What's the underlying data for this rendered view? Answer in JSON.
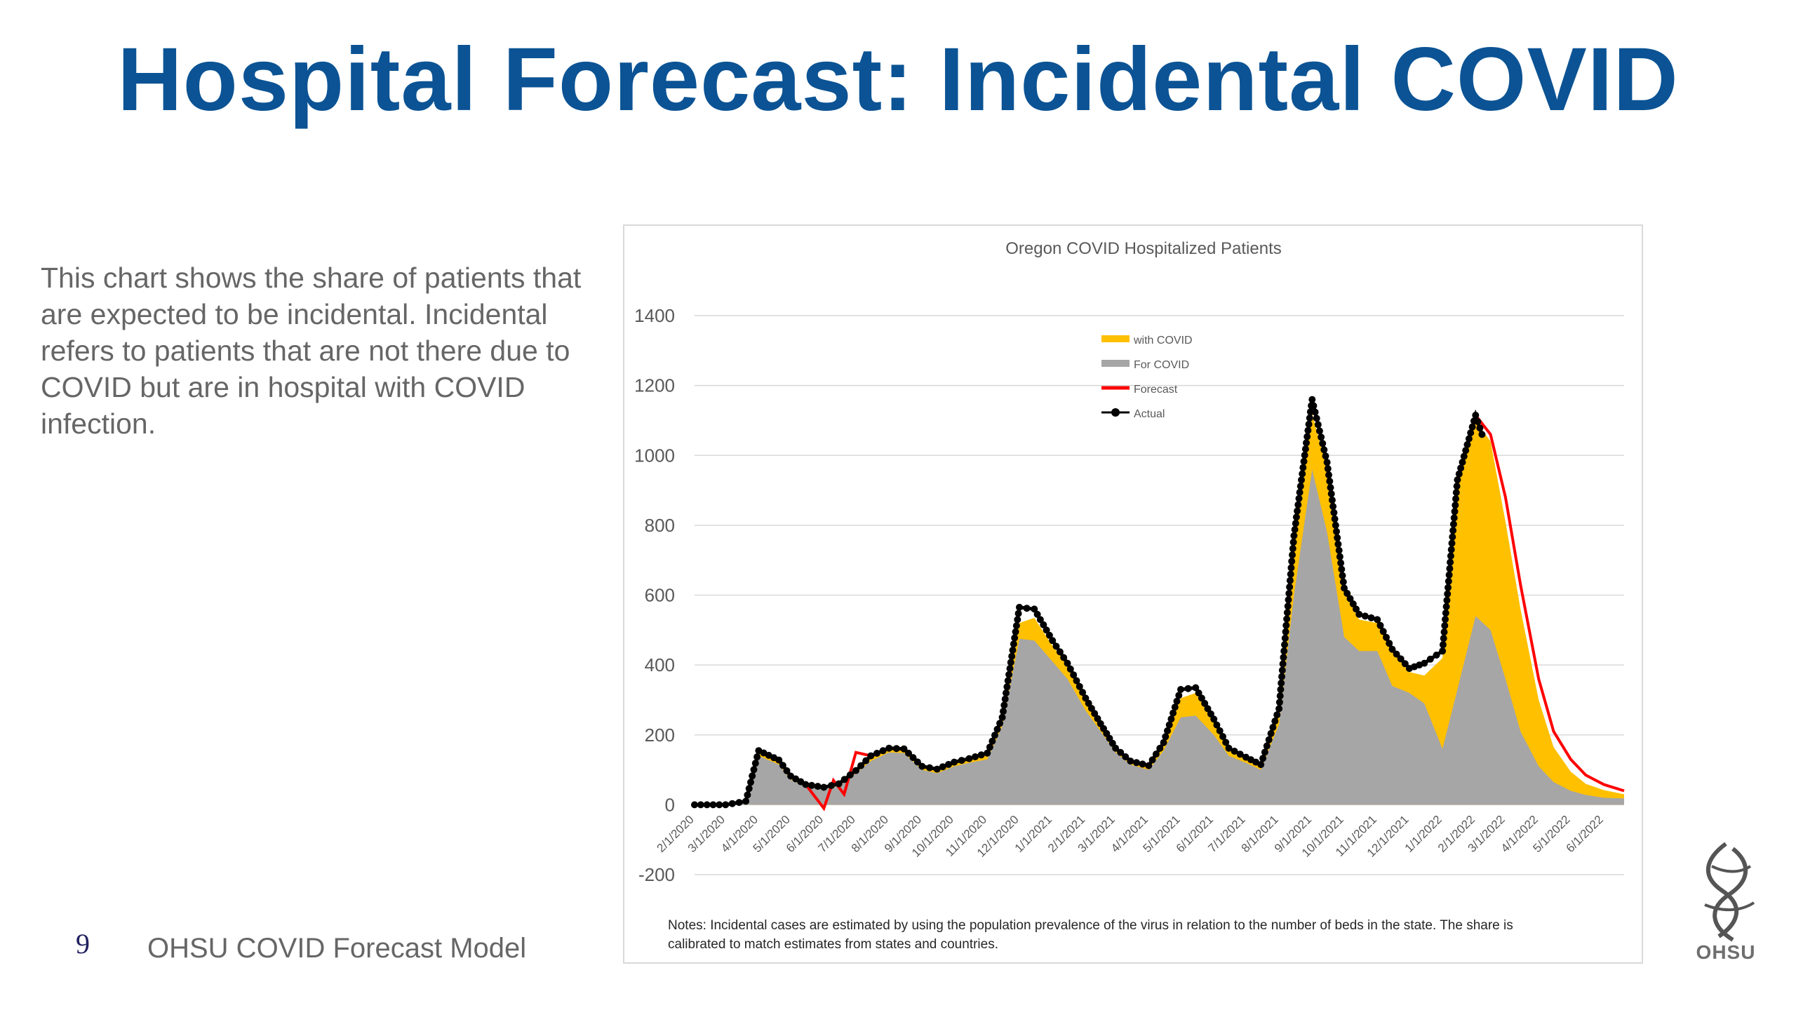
{
  "slide": {
    "title": "Hospital Forecast: Incidental COVID",
    "description": "This chart shows the share of patients that are expected to be incidental. Incidental refers to patients that are not there due to COVID but are in hospital with COVID infection.",
    "page_number": "9",
    "footer": "OHSU COVID Forecast Model",
    "logo_text": "OHSU"
  },
  "colors": {
    "title": "#0b5394",
    "with_covid": "#ffc000",
    "for_covid": "#a6a6a6",
    "forecast": "#ff0000",
    "actual": "#000000"
  },
  "chart_data": {
    "type": "area",
    "title": "Oregon COVID Hospitalized Patients",
    "ylim": [
      -200,
      1400
    ],
    "y_ticks": [
      -200,
      0,
      200,
      400,
      600,
      800,
      1000,
      1200,
      1400
    ],
    "x_tick_labels": [
      "2/1/2020",
      "3/1/2020",
      "4/1/2020",
      "5/1/2020",
      "6/1/2020",
      "7/1/2020",
      "8/1/2020",
      "9/1/2020",
      "10/1/2020",
      "11/1/2020",
      "12/1/2020",
      "1/1/2021",
      "2/1/2021",
      "3/1/2021",
      "4/1/2021",
      "5/1/2021",
      "6/1/2021",
      "7/1/2021",
      "8/1/2021",
      "9/1/2021",
      "10/1/2021",
      "11/1/2021",
      "12/1/2021",
      "1/1/2022",
      "2/1/2022",
      "3/1/2022",
      "4/1/2022",
      "5/1/2022",
      "6/1/2022"
    ],
    "legend_position": "top-center",
    "grid": true,
    "notes": "Notes: Incidental cases are estimated by using the population prevalence of the virus in relation to the number of beds in the state. The share is calibrated to match estimates from states and countries.",
    "series": [
      {
        "name": "with COVID",
        "type": "area",
        "points": [
          [
            "2/1/2020",
            0
          ],
          [
            "3/1/2020",
            0
          ],
          [
            "3/20/2020",
            10
          ],
          [
            "4/1/2020",
            150
          ],
          [
            "4/20/2020",
            125
          ],
          [
            "5/1/2020",
            80
          ],
          [
            "5/15/2020",
            58
          ],
          [
            "6/1/2020",
            50
          ],
          [
            "6/15/2020",
            60
          ],
          [
            "7/1/2020",
            95
          ],
          [
            "7/15/2020",
            135
          ],
          [
            "8/1/2020",
            160
          ],
          [
            "8/15/2020",
            160
          ],
          [
            "9/1/2020",
            110
          ],
          [
            "9/15/2020",
            100
          ],
          [
            "10/1/2020",
            120
          ],
          [
            "10/15/2020",
            130
          ],
          [
            "11/1/2020",
            145
          ],
          [
            "11/15/2020",
            245
          ],
          [
            "12/1/2020",
            520
          ],
          [
            "12/15/2020",
            535
          ],
          [
            "1/1/2021",
            455
          ],
          [
            "1/15/2021",
            400
          ],
          [
            "2/1/2021",
            300
          ],
          [
            "2/15/2021",
            230
          ],
          [
            "3/1/2021",
            160
          ],
          [
            "3/15/2021",
            125
          ],
          [
            "4/1/2021",
            110
          ],
          [
            "4/15/2021",
            175
          ],
          [
            "5/1/2021",
            305
          ],
          [
            "5/15/2021",
            320
          ],
          [
            "6/1/2021",
            240
          ],
          [
            "6/15/2021",
            160
          ],
          [
            "7/1/2021",
            135
          ],
          [
            "7/15/2021",
            115
          ],
          [
            "8/1/2021",
            270
          ],
          [
            "8/15/2021",
            760
          ],
          [
            "9/1/2021",
            1120
          ],
          [
            "9/15/2021",
            960
          ],
          [
            "10/1/2021",
            610
          ],
          [
            "10/15/2021",
            530
          ],
          [
            "11/1/2021",
            520
          ],
          [
            "11/15/2021",
            440
          ],
          [
            "12/1/2021",
            380
          ],
          [
            "12/15/2021",
            370
          ],
          [
            "1/1/2022",
            420
          ],
          [
            "1/15/2022",
            920
          ],
          [
            "2/1/2022",
            1100
          ],
          [
            "2/15/2022",
            1040
          ],
          [
            "3/1/2022",
            810
          ],
          [
            "3/15/2022",
            560
          ],
          [
            "4/1/2022",
            300
          ],
          [
            "4/15/2022",
            165
          ],
          [
            "5/1/2022",
            95
          ],
          [
            "5/15/2022",
            60
          ],
          [
            "6/1/2022",
            42
          ],
          [
            "6/20/2022",
            30
          ]
        ]
      },
      {
        "name": "For COVID",
        "type": "area",
        "points": [
          [
            "2/1/2020",
            0
          ],
          [
            "3/1/2020",
            0
          ],
          [
            "3/20/2020",
            10
          ],
          [
            "4/1/2020",
            140
          ],
          [
            "4/20/2020",
            115
          ],
          [
            "5/1/2020",
            72
          ],
          [
            "5/15/2020",
            52
          ],
          [
            "6/1/2020",
            45
          ],
          [
            "6/15/2020",
            55
          ],
          [
            "7/1/2020",
            90
          ],
          [
            "7/15/2020",
            125
          ],
          [
            "8/1/2020",
            150
          ],
          [
            "8/15/2020",
            148
          ],
          [
            "9/1/2020",
            100
          ],
          [
            "9/15/2020",
            90
          ],
          [
            "10/1/2020",
            110
          ],
          [
            "10/15/2020",
            120
          ],
          [
            "11/1/2020",
            130
          ],
          [
            "11/15/2020",
            225
          ],
          [
            "12/1/2020",
            475
          ],
          [
            "12/15/2020",
            470
          ],
          [
            "1/1/2021",
            410
          ],
          [
            "1/15/2021",
            360
          ],
          [
            "2/1/2021",
            270
          ],
          [
            "2/15/2021",
            210
          ],
          [
            "3/1/2021",
            150
          ],
          [
            "3/15/2021",
            115
          ],
          [
            "4/1/2021",
            100
          ],
          [
            "4/15/2021",
            155
          ],
          [
            "5/1/2021",
            250
          ],
          [
            "5/15/2021",
            255
          ],
          [
            "6/1/2021",
            200
          ],
          [
            "6/15/2021",
            140
          ],
          [
            "7/1/2021",
            120
          ],
          [
            "7/15/2021",
            100
          ],
          [
            "8/1/2021",
            230
          ],
          [
            "8/15/2021",
            600
          ],
          [
            "9/1/2021",
            960
          ],
          [
            "9/15/2021",
            780
          ],
          [
            "10/1/2021",
            480
          ],
          [
            "10/15/2021",
            440
          ],
          [
            "11/1/2021",
            440
          ],
          [
            "11/15/2021",
            340
          ],
          [
            "12/1/2021",
            320
          ],
          [
            "12/15/2021",
            290
          ],
          [
            "1/1/2022",
            160
          ],
          [
            "1/15/2022",
            330
          ],
          [
            "2/1/2022",
            540
          ],
          [
            "2/15/2022",
            500
          ],
          [
            "3/1/2022",
            360
          ],
          [
            "3/15/2022",
            210
          ],
          [
            "4/1/2022",
            110
          ],
          [
            "4/15/2022",
            65
          ],
          [
            "5/1/2022",
            40
          ],
          [
            "5/15/2022",
            28
          ],
          [
            "6/1/2022",
            20
          ],
          [
            "6/20/2022",
            18
          ]
        ]
      },
      {
        "name": "Forecast",
        "type": "line",
        "points": [
          [
            "2/1/2020",
            0
          ],
          [
            "3/1/2020",
            0
          ],
          [
            "3/20/2020",
            10
          ],
          [
            "4/1/2020",
            155
          ],
          [
            "4/20/2020",
            128
          ],
          [
            "5/1/2020",
            82
          ],
          [
            "5/15/2020",
            58
          ],
          [
            "6/1/2020",
            -10
          ],
          [
            "6/10/2020",
            70
          ],
          [
            "6/20/2020",
            30
          ],
          [
            "7/1/2020",
            150
          ],
          [
            "7/15/2020",
            140
          ],
          [
            "8/1/2020",
            162
          ],
          [
            "8/15/2020",
            160
          ],
          [
            "9/1/2020",
            110
          ],
          [
            "9/15/2020",
            102
          ],
          [
            "10/1/2020",
            122
          ],
          [
            "10/15/2020",
            132
          ],
          [
            "11/1/2020",
            148
          ],
          [
            "11/15/2020",
            250
          ],
          [
            "12/1/2020",
            565
          ],
          [
            "12/15/2020",
            560
          ],
          [
            "1/1/2021",
            470
          ],
          [
            "1/15/2021",
            405
          ],
          [
            "2/1/2021",
            305
          ],
          [
            "2/15/2021",
            232
          ],
          [
            "3/1/2021",
            162
          ],
          [
            "3/15/2021",
            125
          ],
          [
            "4/1/2021",
            112
          ],
          [
            "4/15/2021",
            178
          ],
          [
            "5/1/2021",
            330
          ],
          [
            "5/15/2021",
            335
          ],
          [
            "6/1/2021",
            245
          ],
          [
            "6/15/2021",
            162
          ],
          [
            "7/1/2021",
            136
          ],
          [
            "7/15/2021",
            115
          ],
          [
            "8/1/2021",
            275
          ],
          [
            "8/15/2021",
            770
          ],
          [
            "9/1/2021",
            1160
          ],
          [
            "9/15/2021",
            980
          ],
          [
            "10/1/2021",
            620
          ],
          [
            "10/15/2021",
            545
          ],
          [
            "11/1/2021",
            530
          ],
          [
            "11/15/2021",
            445
          ],
          [
            "12/1/2021",
            390
          ],
          [
            "12/15/2021",
            405
          ],
          [
            "1/1/2022",
            440
          ],
          [
            "1/15/2022",
            930
          ],
          [
            "2/1/2022",
            1115
          ],
          [
            "2/15/2022",
            1060
          ],
          [
            "3/1/2022",
            880
          ],
          [
            "3/15/2022",
            630
          ],
          [
            "4/1/2022",
            360
          ],
          [
            "4/15/2022",
            210
          ],
          [
            "5/1/2022",
            130
          ],
          [
            "5/15/2022",
            85
          ],
          [
            "6/1/2022",
            58
          ],
          [
            "6/20/2022",
            40
          ]
        ]
      },
      {
        "name": "Actual",
        "type": "line-markers",
        "points": [
          [
            "2/1/2020",
            0
          ],
          [
            "3/1/2020",
            0
          ],
          [
            "3/20/2020",
            10
          ],
          [
            "4/1/2020",
            155
          ],
          [
            "4/20/2020",
            128
          ],
          [
            "5/1/2020",
            82
          ],
          [
            "5/15/2020",
            58
          ],
          [
            "6/1/2020",
            50
          ],
          [
            "6/15/2020",
            60
          ],
          [
            "7/1/2020",
            98
          ],
          [
            "7/15/2020",
            140
          ],
          [
            "8/1/2020",
            162
          ],
          [
            "8/15/2020",
            160
          ],
          [
            "9/1/2020",
            110
          ],
          [
            "9/15/2020",
            102
          ],
          [
            "10/1/2020",
            122
          ],
          [
            "10/15/2020",
            132
          ],
          [
            "11/1/2020",
            148
          ],
          [
            "11/15/2020",
            250
          ],
          [
            "12/1/2020",
            565
          ],
          [
            "12/15/2020",
            560
          ],
          [
            "1/1/2021",
            470
          ],
          [
            "1/15/2021",
            405
          ],
          [
            "2/1/2021",
            305
          ],
          [
            "2/15/2021",
            232
          ],
          [
            "3/1/2021",
            162
          ],
          [
            "3/15/2021",
            125
          ],
          [
            "4/1/2021",
            112
          ],
          [
            "4/15/2021",
            178
          ],
          [
            "5/1/2021",
            330
          ],
          [
            "5/15/2021",
            335
          ],
          [
            "6/1/2021",
            245
          ],
          [
            "6/15/2021",
            162
          ],
          [
            "7/1/2021",
            136
          ],
          [
            "7/15/2021",
            115
          ],
          [
            "8/1/2021",
            275
          ],
          [
            "8/15/2021",
            770
          ],
          [
            "9/1/2021",
            1160
          ],
          [
            "9/15/2021",
            980
          ],
          [
            "10/1/2021",
            620
          ],
          [
            "10/15/2021",
            545
          ],
          [
            "11/1/2021",
            530
          ],
          [
            "11/15/2021",
            445
          ],
          [
            "12/1/2021",
            390
          ],
          [
            "12/15/2021",
            405
          ],
          [
            "1/1/2022",
            440
          ],
          [
            "1/15/2022",
            930
          ],
          [
            "2/1/2022",
            1115
          ],
          [
            "2/7/2022",
            1060
          ]
        ]
      }
    ]
  }
}
